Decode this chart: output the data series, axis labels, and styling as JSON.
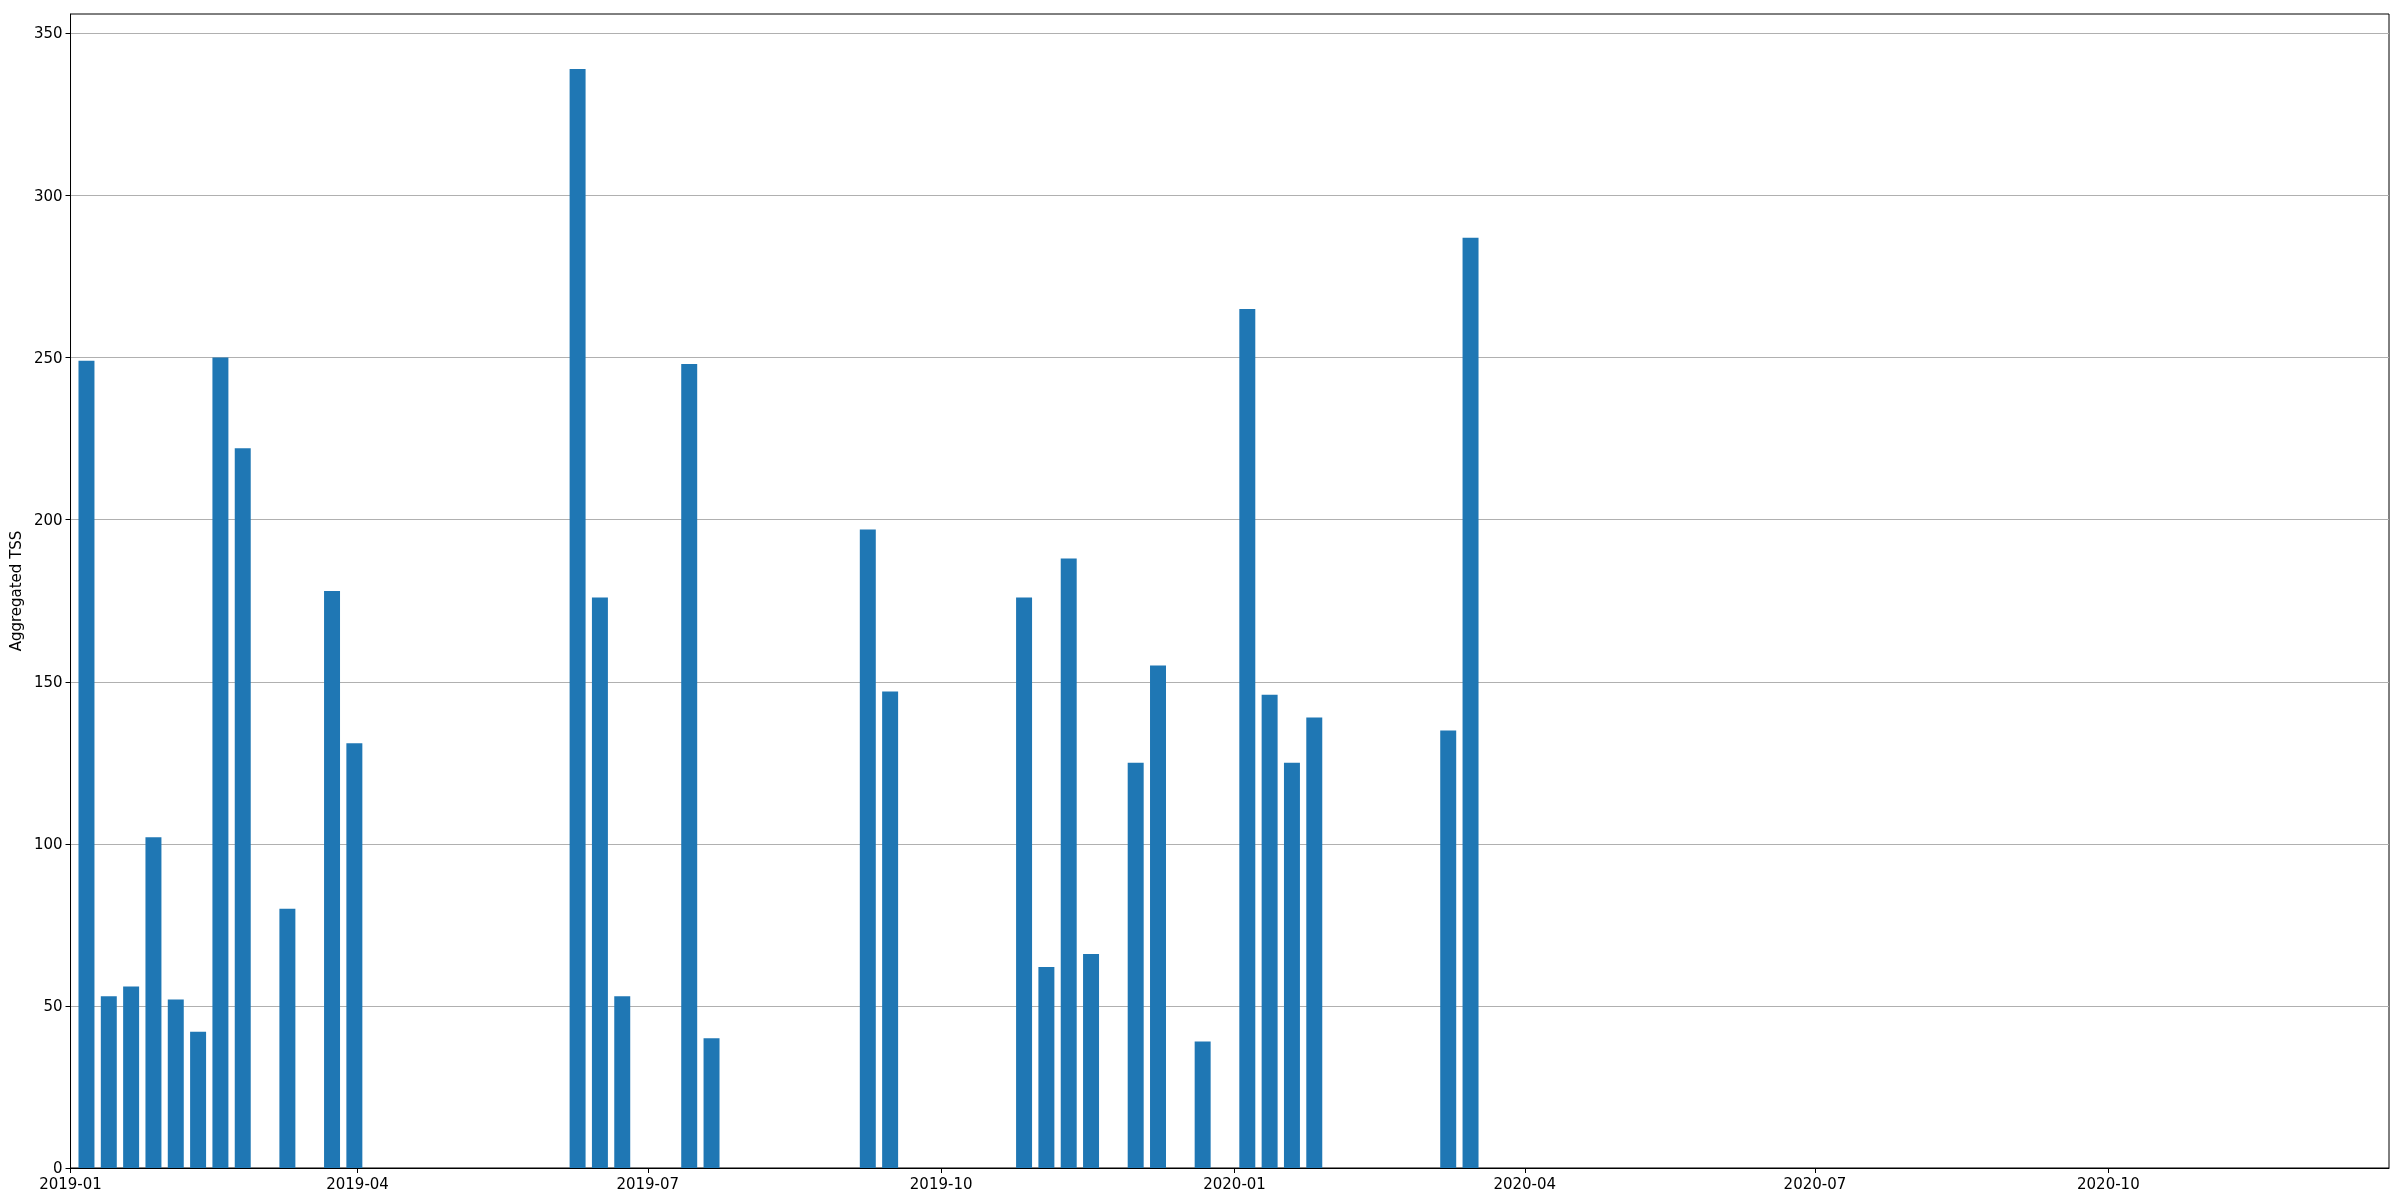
{
  "chart_data": {
    "type": "bar",
    "ylabel": "Aggregated TSS",
    "x": [
      "2019-01-06",
      "2019-01-13",
      "2019-01-20",
      "2019-01-27",
      "2019-02-03",
      "2019-02-10",
      "2019-02-17",
      "2019-02-24",
      "2019-03-10",
      "2019-03-24",
      "2019-03-31",
      "2019-06-09",
      "2019-06-16",
      "2019-06-23",
      "2019-07-14",
      "2019-07-21",
      "2019-09-08",
      "2019-09-15",
      "2019-10-27",
      "2019-11-03",
      "2019-11-10",
      "2019-11-17",
      "2019-12-01",
      "2019-12-08",
      "2019-12-22",
      "2020-01-05",
      "2020-01-12",
      "2020-01-19",
      "2020-01-26",
      "2020-03-08",
      "2020-03-15"
    ],
    "values": [
      249,
      53,
      56,
      102,
      52,
      42,
      250,
      222,
      80,
      178,
      131,
      339,
      176,
      53,
      248,
      40,
      197,
      147,
      176,
      62,
      188,
      66,
      125,
      155,
      39,
      265,
      146,
      125,
      139,
      135,
      287
    ],
    "color": "#1f77b4",
    "xlim": [
      "2019-01-01",
      "2020-12-28"
    ],
    "xticks": [
      "2019-01",
      "2019-04",
      "2019-07",
      "2019-10",
      "2020-01",
      "2020-04",
      "2020-07",
      "2020-10"
    ],
    "ylim": [
      0,
      356
    ],
    "yticks": [
      0,
      50,
      100,
      150,
      200,
      250,
      300,
      350
    ],
    "grid": "y"
  }
}
